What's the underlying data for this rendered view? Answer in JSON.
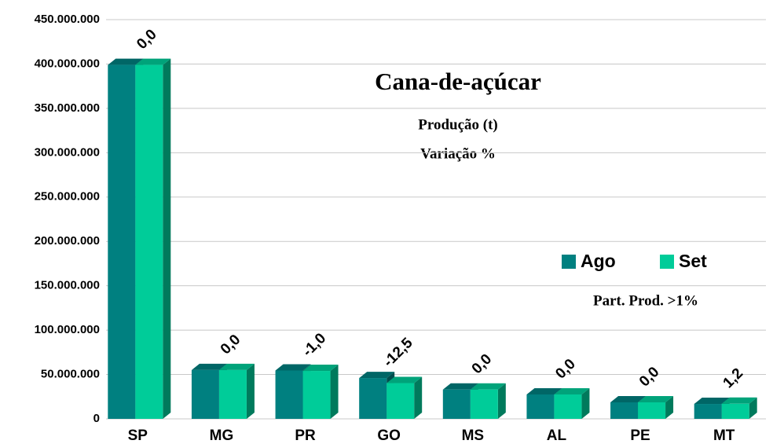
{
  "chart_data": {
    "type": "bar3d",
    "title": "Cana-de-açúcar",
    "subtitle": [
      "Produção (t)",
      "Variação %"
    ],
    "annotation": "Part. Prod. >1%",
    "categories": [
      "SP",
      "MG",
      "PR",
      "GO",
      "MS",
      "AL",
      "PE",
      "MT"
    ],
    "series": [
      {
        "name": "Ago",
        "color": "#008080",
        "values": [
          399000000,
          55000000,
          54500000,
          46000000,
          33000000,
          27500000,
          18600000,
          16800000
        ]
      },
      {
        "name": "Set",
        "color": "#00cc99",
        "values": [
          399000000,
          55000000,
          54000000,
          40300000,
          33000000,
          27500000,
          18600000,
          17000000
        ]
      }
    ],
    "variation": {
      "values": [
        0,
        0,
        -1,
        -12.5,
        0,
        0,
        0,
        1.2
      ],
      "value_labels": [
        "0,0",
        "0,0",
        "-1,0",
        "-12,5",
        "0,0",
        "0,0",
        "0,0",
        "1,2"
      ]
    },
    "ylim": [
      0,
      450000000
    ],
    "yticks": [
      {
        "value": 0,
        "label": "0"
      },
      {
        "value": 50000000,
        "label": "50.000.000"
      },
      {
        "value": 100000000,
        "label": "100.000.000"
      },
      {
        "value": 150000000,
        "label": "150.000.000"
      },
      {
        "value": 200000000,
        "label": "200.000.000"
      },
      {
        "value": 250000000,
        "label": "250.000.000"
      },
      {
        "value": 300000000,
        "label": "300.000.000"
      },
      {
        "value": 350000000,
        "label": "350.000.000"
      },
      {
        "value": 400000000,
        "label": "400.000.000"
      },
      {
        "value": 450000000,
        "label": "450.000.000"
      }
    ],
    "grid": true,
    "legend": "right"
  }
}
